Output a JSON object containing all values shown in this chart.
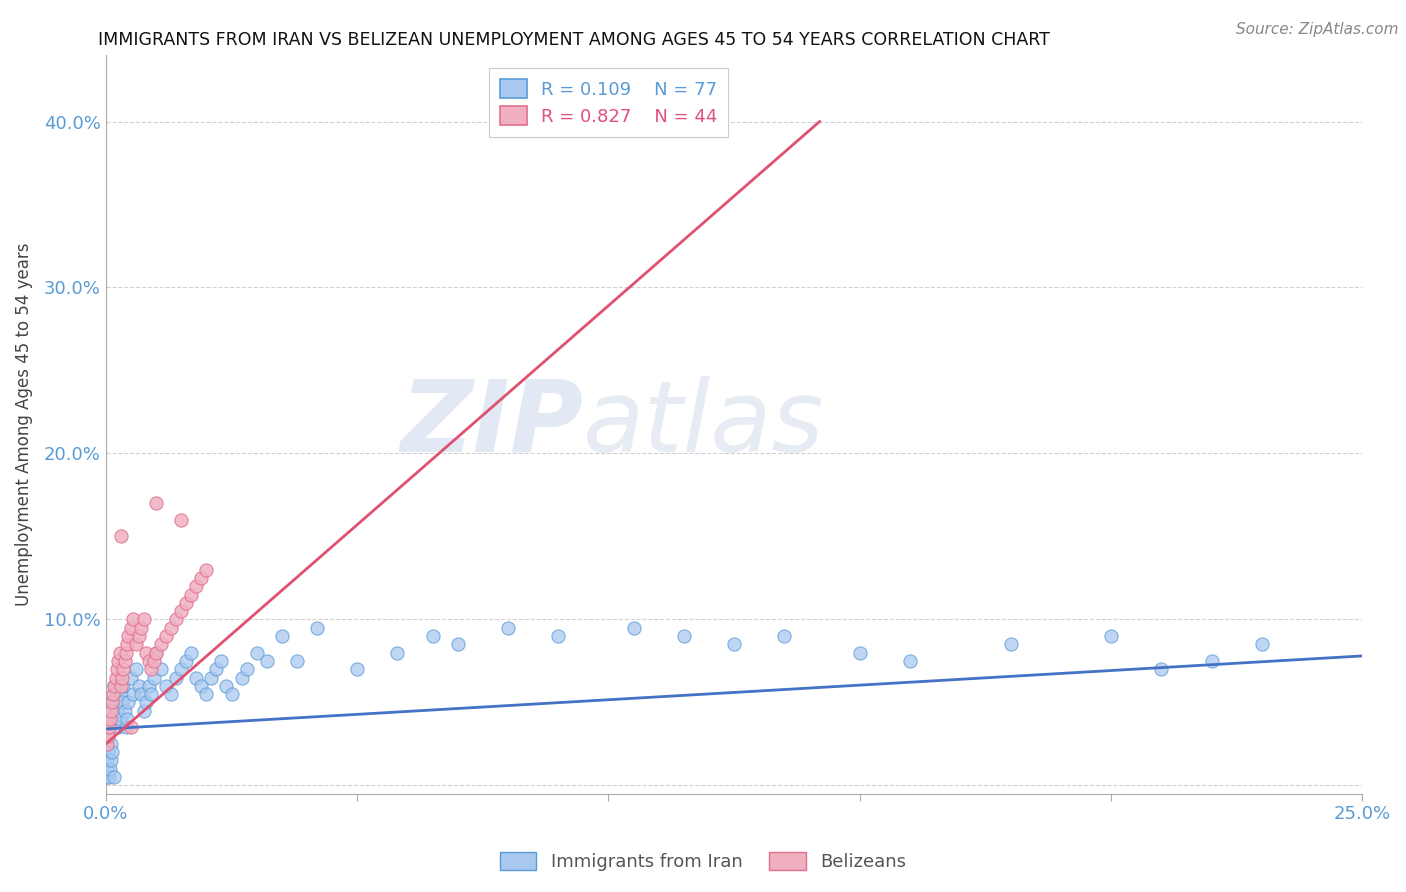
{
  "title": "IMMIGRANTS FROM IRAN VS BELIZEAN UNEMPLOYMENT AMONG AGES 45 TO 54 YEARS CORRELATION CHART",
  "source": "Source: ZipAtlas.com",
  "ylabel": "Unemployment Among Ages 45 to 54 years",
  "xlim": [
    0.0,
    0.25
  ],
  "ylim": [
    -0.005,
    0.44
  ],
  "xticks": [
    0.0,
    0.05,
    0.1,
    0.15,
    0.2,
    0.25
  ],
  "xticklabels": [
    "0.0%",
    "",
    "",
    "",
    "",
    "25.0%"
  ],
  "yticks": [
    0.0,
    0.1,
    0.2,
    0.3,
    0.4
  ],
  "yticklabels": [
    "",
    "10.0%",
    "20.0%",
    "30.0%",
    "40.0%"
  ],
  "legend_labels": [
    "Immigrants from Iran",
    "Belizeans"
  ],
  "series1_color": "#a8c8f0",
  "series2_color": "#f0b0c0",
  "series1_edge": "#5B9BD5",
  "series2_edge": "#e07090",
  "line1_color": "#4472C4",
  "line2_color": "#e05070",
  "R1": 0.109,
  "N1": 77,
  "R2": 0.827,
  "N2": 44,
  "watermark_zip": "ZIP",
  "watermark_atlas": "atlas",
  "axis_color": "#5B9BD5",
  "grid_color": "#cccccc",
  "series1_x": [
    0.0003,
    0.0005,
    0.0007,
    0.001,
    0.0012,
    0.0015,
    0.0017,
    0.002,
    0.0023,
    0.0025,
    0.0028,
    0.003,
    0.0033,
    0.0035,
    0.0038,
    0.004,
    0.0043,
    0.0045,
    0.005,
    0.0055,
    0.006,
    0.0065,
    0.007,
    0.0075,
    0.008,
    0.0085,
    0.009,
    0.0095,
    0.01,
    0.011,
    0.012,
    0.013,
    0.014,
    0.015,
    0.016,
    0.017,
    0.018,
    0.019,
    0.02,
    0.021,
    0.022,
    0.023,
    0.024,
    0.025,
    0.027,
    0.028,
    0.03,
    0.032,
    0.035,
    0.038,
    0.042,
    0.05,
    0.058,
    0.065,
    0.07,
    0.08,
    0.09,
    0.105,
    0.115,
    0.125,
    0.135,
    0.15,
    0.16,
    0.18,
    0.2,
    0.21,
    0.22,
    0.23,
    0.0001,
    0.0002,
    0.0003,
    0.0004,
    0.0006,
    0.0008,
    0.0011,
    0.0013,
    0.0016
  ],
  "series1_y": [
    0.03,
    0.045,
    0.035,
    0.025,
    0.04,
    0.05,
    0.06,
    0.055,
    0.045,
    0.035,
    0.04,
    0.055,
    0.05,
    0.06,
    0.045,
    0.035,
    0.04,
    0.05,
    0.065,
    0.055,
    0.07,
    0.06,
    0.055,
    0.045,
    0.05,
    0.06,
    0.055,
    0.065,
    0.08,
    0.07,
    0.06,
    0.055,
    0.065,
    0.07,
    0.075,
    0.08,
    0.065,
    0.06,
    0.055,
    0.065,
    0.07,
    0.075,
    0.06,
    0.055,
    0.065,
    0.07,
    0.08,
    0.075,
    0.09,
    0.075,
    0.095,
    0.07,
    0.08,
    0.09,
    0.085,
    0.095,
    0.09,
    0.095,
    0.09,
    0.085,
    0.09,
    0.08,
    0.075,
    0.085,
    0.09,
    0.07,
    0.075,
    0.085,
    0.005,
    0.01,
    0.015,
    0.02,
    0.005,
    0.01,
    0.015,
    0.02,
    0.005
  ],
  "series2_x": [
    0.0002,
    0.0004,
    0.0006,
    0.0008,
    0.001,
    0.0012,
    0.0015,
    0.0017,
    0.002,
    0.0022,
    0.0025,
    0.0028,
    0.003,
    0.0033,
    0.0035,
    0.0038,
    0.004,
    0.0043,
    0.0045,
    0.005,
    0.0055,
    0.006,
    0.0065,
    0.007,
    0.0075,
    0.008,
    0.0085,
    0.009,
    0.0095,
    0.01,
    0.011,
    0.012,
    0.013,
    0.014,
    0.015,
    0.016,
    0.017,
    0.018,
    0.019,
    0.02,
    0.015,
    0.01,
    0.005,
    0.003
  ],
  "series2_y": [
    0.025,
    0.03,
    0.035,
    0.04,
    0.045,
    0.05,
    0.055,
    0.06,
    0.065,
    0.07,
    0.075,
    0.08,
    0.06,
    0.065,
    0.07,
    0.075,
    0.08,
    0.085,
    0.09,
    0.095,
    0.1,
    0.085,
    0.09,
    0.095,
    0.1,
    0.08,
    0.075,
    0.07,
    0.075,
    0.08,
    0.085,
    0.09,
    0.095,
    0.1,
    0.105,
    0.11,
    0.115,
    0.12,
    0.125,
    0.13,
    0.16,
    0.17,
    0.035,
    0.15
  ],
  "line1_x": [
    0.0,
    0.25
  ],
  "line1_y": [
    0.034,
    0.078
  ],
  "line2_x": [
    0.0,
    0.142
  ],
  "line2_y": [
    0.025,
    0.4
  ]
}
